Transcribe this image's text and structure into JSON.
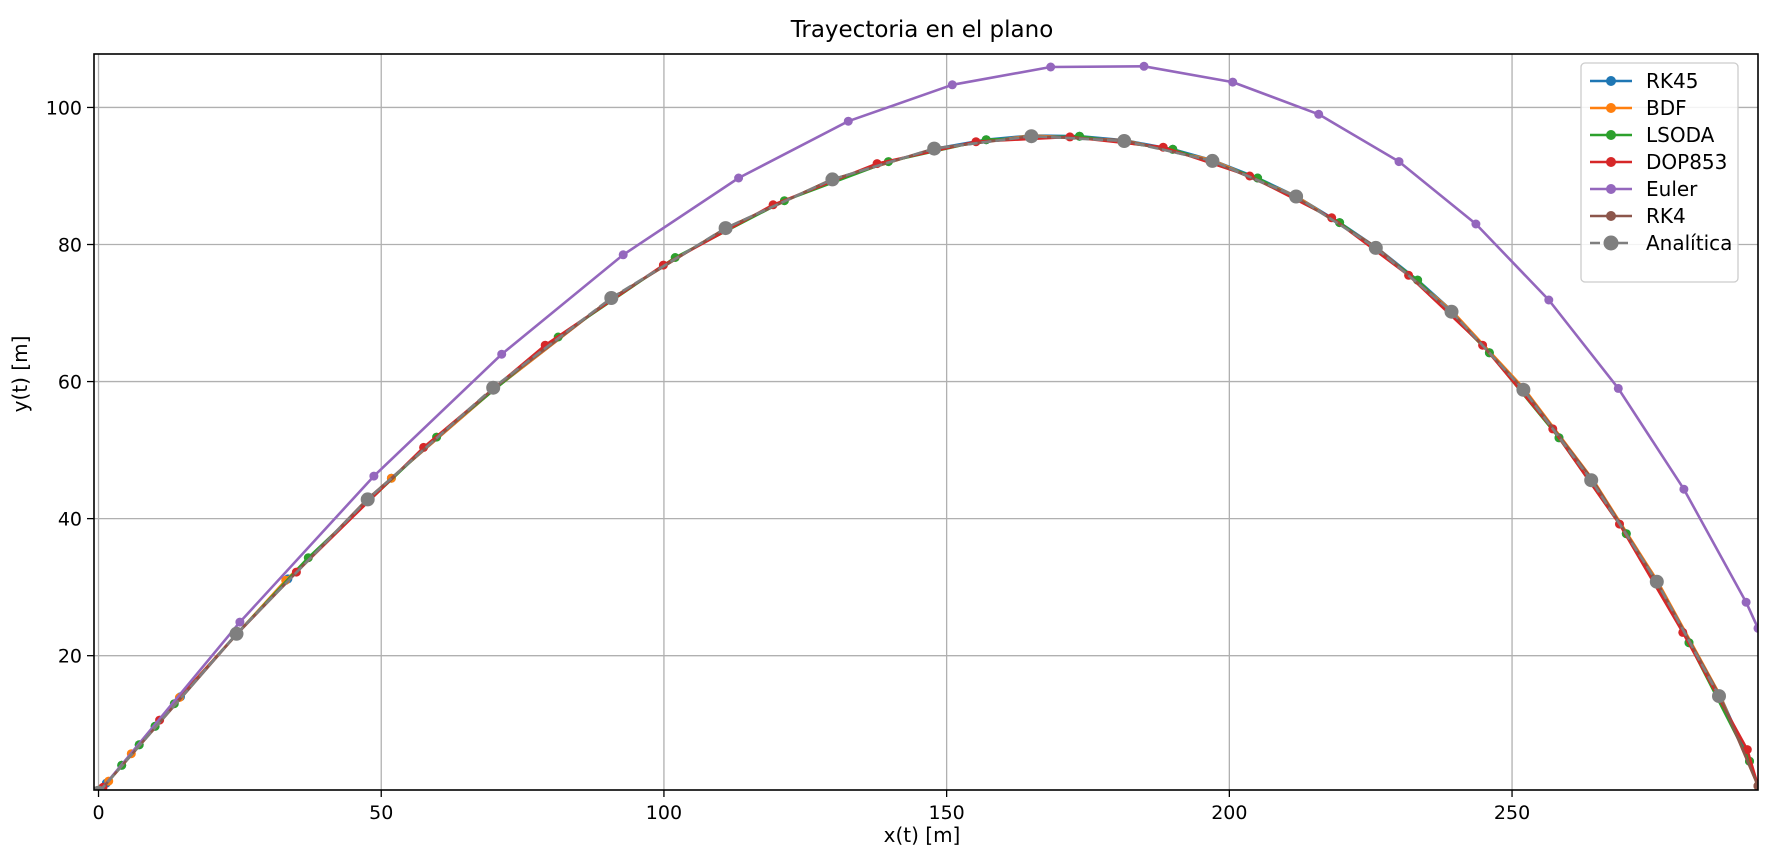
{
  "chart_data": {
    "type": "line",
    "title": "Trayectoria en el plano",
    "xlabel": "x(t) [m]",
    "ylabel": "y(t) [m]",
    "xlim": [
      -0.8,
      293.5
    ],
    "ylim": [
      0.4,
      107.8
    ],
    "xticks": [
      0,
      50,
      100,
      150,
      200,
      250
    ],
    "yticks": [
      20,
      40,
      60,
      80,
      100
    ],
    "grid": true,
    "legend": "upper right",
    "series": [
      {
        "name": "RK45",
        "color": "#1f77b4",
        "marker_size": 4.5,
        "dashed": false,
        "points": [
          [
            0,
            0
          ],
          [
            1.4,
            1.4
          ],
          [
            4.1,
            4.0
          ],
          [
            7.2,
            7.0
          ],
          [
            10.0,
            9.7
          ],
          [
            14.5,
            14.0
          ],
          [
            24.5,
            23.2
          ],
          [
            33.5,
            31.2
          ],
          [
            51.8,
            45.9
          ],
          [
            70.2,
            59.0
          ],
          [
            90.5,
            72.0
          ],
          [
            110.8,
            82.3
          ],
          [
            129.5,
            89.4
          ],
          [
            148.0,
            94.0
          ],
          [
            157.0,
            95.3
          ],
          [
            165.0,
            95.9
          ],
          [
            173.5,
            95.8
          ],
          [
            181.5,
            95.2
          ],
          [
            190.0,
            93.9
          ],
          [
            197.0,
            92.3
          ],
          [
            205.0,
            89.7
          ],
          [
            211.9,
            87.0
          ],
          [
            219.5,
            83.2
          ],
          [
            226.0,
            79.6
          ],
          [
            233.3,
            74.8
          ],
          [
            239.4,
            70.3
          ],
          [
            246.0,
            64.2
          ],
          [
            252.2,
            58.9
          ],
          [
            258.3,
            51.8
          ],
          [
            264.3,
            45.7
          ],
          [
            270.2,
            37.8
          ],
          [
            275.7,
            30.9
          ],
          [
            281.3,
            21.9
          ],
          [
            286.8,
            14.2
          ],
          [
            292.0,
            4.6
          ],
          [
            293.5,
            1.0
          ]
        ]
      },
      {
        "name": "BDF",
        "color": "#ff7f0e",
        "marker_size": 4.5,
        "dashed": false,
        "points": [
          [
            0.5,
            0.5
          ],
          [
            1.8,
            1.7
          ],
          [
            5.8,
            5.7
          ],
          [
            14.3,
            13.9
          ],
          [
            24.5,
            23.2
          ],
          [
            33.1,
            31.0
          ],
          [
            51.8,
            45.9
          ],
          [
            70.2,
            59.0
          ],
          [
            90.5,
            72.0
          ],
          [
            110.8,
            82.3
          ],
          [
            129.5,
            89.4
          ],
          [
            148.0,
            94.0
          ],
          [
            165.0,
            95.9
          ],
          [
            181.5,
            95.2
          ],
          [
            197.0,
            92.3
          ],
          [
            211.9,
            87.0
          ],
          [
            226.0,
            79.6
          ],
          [
            239.4,
            70.3
          ],
          [
            252.2,
            58.9
          ],
          [
            264.3,
            45.7
          ],
          [
            275.7,
            30.9
          ],
          [
            286.8,
            14.2
          ],
          [
            293.5,
            1.0
          ]
        ]
      },
      {
        "name": "LSODA",
        "color": "#2ca02c",
        "marker_size": 4.5,
        "dashed": false,
        "points": [
          [
            0,
            0
          ],
          [
            0.6,
            0.6
          ],
          [
            4.1,
            4.0
          ],
          [
            7.2,
            7.0
          ],
          [
            10.0,
            9.7
          ],
          [
            13.4,
            13.0
          ],
          [
            24.5,
            23.2
          ],
          [
            37.1,
            34.3
          ],
          [
            59.8,
            51.9
          ],
          [
            81.3,
            66.5
          ],
          [
            102.0,
            78.1
          ],
          [
            121.3,
            86.4
          ],
          [
            139.7,
            92.1
          ],
          [
            157.0,
            95.3
          ],
          [
            173.5,
            95.8
          ],
          [
            190.0,
            93.9
          ],
          [
            205.0,
            89.7
          ],
          [
            219.5,
            83.2
          ],
          [
            233.3,
            74.8
          ],
          [
            246.0,
            64.2
          ],
          [
            258.3,
            51.8
          ],
          [
            270.2,
            37.8
          ],
          [
            281.3,
            21.9
          ],
          [
            292.0,
            4.6
          ],
          [
            293.5,
            1.0
          ]
        ]
      },
      {
        "name": "DOP853",
        "color": "#d62728",
        "marker_size": 4.5,
        "dashed": false,
        "points": [
          [
            0,
            0
          ],
          [
            0.8,
            0.8
          ],
          [
            10.8,
            10.6
          ],
          [
            24.5,
            23.2
          ],
          [
            35.0,
            32.2
          ],
          [
            57.5,
            50.4
          ],
          [
            79.0,
            65.3
          ],
          [
            99.9,
            77.0
          ],
          [
            119.3,
            85.8
          ],
          [
            137.7,
            91.8
          ],
          [
            155.2,
            95.0
          ],
          [
            171.8,
            95.7
          ],
          [
            188.3,
            94.2
          ],
          [
            203.6,
            90.0
          ],
          [
            218.1,
            83.9
          ],
          [
            231.7,
            75.5
          ],
          [
            244.8,
            65.3
          ],
          [
            257.2,
            53.1
          ],
          [
            269.0,
            39.2
          ],
          [
            280.2,
            23.4
          ],
          [
            291.6,
            6.3
          ],
          [
            293.5,
            1.0
          ]
        ]
      },
      {
        "name": "Euler",
        "color": "#9467bd",
        "marker_size": 4.5,
        "dashed": false,
        "points": [
          [
            0,
            0
          ],
          [
            25.0,
            24.9
          ],
          [
            48.7,
            46.2
          ],
          [
            71.3,
            64.0
          ],
          [
            92.8,
            78.5
          ],
          [
            113.2,
            89.7
          ],
          [
            132.6,
            98.0
          ],
          [
            151.0,
            103.3
          ],
          [
            168.4,
            105.9
          ],
          [
            184.9,
            106.0
          ],
          [
            200.6,
            103.7
          ],
          [
            215.8,
            99.0
          ],
          [
            230.0,
            92.1
          ],
          [
            243.6,
            83.0
          ],
          [
            256.5,
            71.9
          ],
          [
            268.8,
            59.0
          ],
          [
            280.4,
            44.3
          ],
          [
            291.4,
            27.8
          ],
          [
            293.5,
            24.0
          ]
        ]
      },
      {
        "name": "RK4",
        "color": "#8c564b",
        "marker_size": 4.5,
        "dashed": false,
        "points": [
          [
            0,
            0
          ],
          [
            24.5,
            23.2
          ],
          [
            47.5,
            42.8
          ],
          [
            69.9,
            59.0
          ],
          [
            90.5,
            72.0
          ],
          [
            110.8,
            82.3
          ],
          [
            129.5,
            89.4
          ],
          [
            147.8,
            94.0
          ],
          [
            164.9,
            95.8
          ],
          [
            181.3,
            95.2
          ],
          [
            196.9,
            92.2
          ],
          [
            211.8,
            86.9
          ],
          [
            226.0,
            79.6
          ],
          [
            239.3,
            70.2
          ],
          [
            252.1,
            58.8
          ],
          [
            264.2,
            45.7
          ],
          [
            275.6,
            30.8
          ],
          [
            286.7,
            14.2
          ],
          [
            293.5,
            1.0
          ]
        ]
      },
      {
        "name": "Analítica",
        "color": "#7f7f7f",
        "marker_size": 7,
        "dashed": true,
        "points": [
          [
            0,
            0
          ],
          [
            24.4,
            23.2
          ],
          [
            47.6,
            42.8
          ],
          [
            69.8,
            59.1
          ],
          [
            90.7,
            72.2
          ],
          [
            110.9,
            82.4
          ],
          [
            129.8,
            89.5
          ],
          [
            147.8,
            94.0
          ],
          [
            165.0,
            95.8
          ],
          [
            181.4,
            95.1
          ],
          [
            197.0,
            92.2
          ],
          [
            211.8,
            87.0
          ],
          [
            225.9,
            79.5
          ],
          [
            239.3,
            70.2
          ],
          [
            252.0,
            58.8
          ],
          [
            264.0,
            45.6
          ],
          [
            275.6,
            30.8
          ],
          [
            286.6,
            14.1
          ]
        ]
      }
    ]
  }
}
